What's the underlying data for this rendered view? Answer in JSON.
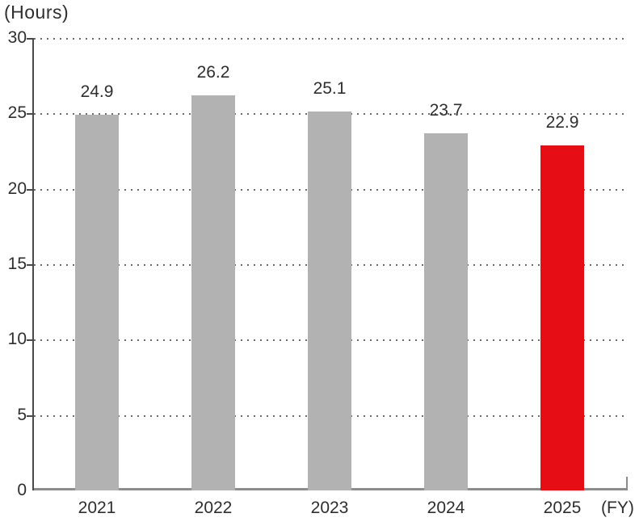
{
  "chart_data": {
    "type": "bar",
    "title": "",
    "unit_label": "(Hours)",
    "fy_label": "(FY)",
    "categories": [
      "2021",
      "2022",
      "2023",
      "2024",
      "2025"
    ],
    "values": [
      24.9,
      26.2,
      25.1,
      23.7,
      22.9
    ],
    "value_labels": [
      "24.9",
      "26.2",
      "25.1",
      "23.7",
      "22.9"
    ],
    "ylim": [
      0,
      30
    ],
    "yticks": [
      0,
      5,
      10,
      15,
      20,
      25,
      30
    ],
    "grid": "horizontal-dotted",
    "legend": "none",
    "bar_colors": [
      "#b2b2b2",
      "#b2b2b2",
      "#b2b2b2",
      "#b2b2b2",
      "#e60d15"
    ],
    "highlight_index": 4,
    "colors": {
      "bar_default": "#b2b2b2",
      "bar_highlight": "#e60d15",
      "grid_dot": "#6b6b6b",
      "y_axis": "#4a4a4a",
      "x_axis": "#8c8c8c",
      "text": "#2e2e2e",
      "background": "#ffffff"
    }
  }
}
